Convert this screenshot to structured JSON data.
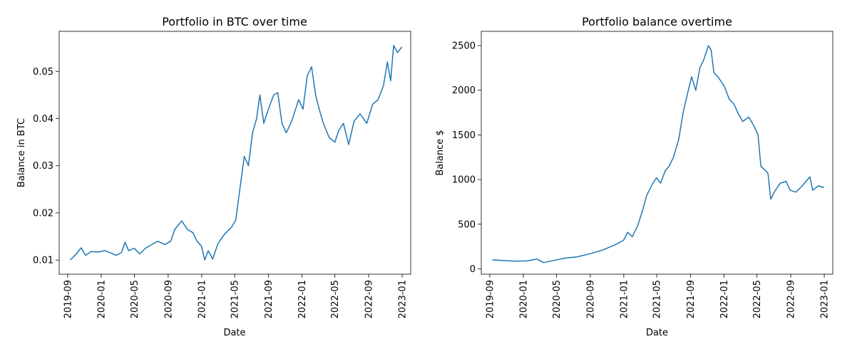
{
  "chart_data": [
    {
      "type": "line",
      "title": "Portfolio in BTC over time",
      "xlabel": "Date",
      "ylabel": "Balance in BTC",
      "xlim": [
        "2019-08-01",
        "2023-02-01"
      ],
      "ylim": [
        0.007,
        0.0585
      ],
      "x_ticks": [
        "2019-09",
        "2020-01",
        "2020-05",
        "2020-09",
        "2021-01",
        "2021-05",
        "2021-09",
        "2022-01",
        "2022-05",
        "2022-09",
        "2023-01"
      ],
      "y_ticks": [
        "0.01",
        "0.02",
        "0.03",
        "0.04",
        "0.05"
      ],
      "grid": false,
      "series": [
        {
          "color": "#1f77b4",
          "points": [
            [
              "2019-09-10",
              0.01
            ],
            [
              "2019-10-01",
              0.0112
            ],
            [
              "2019-10-20",
              0.0126
            ],
            [
              "2019-11-05",
              0.011
            ],
            [
              "2019-11-25",
              0.0118
            ],
            [
              "2019-12-20",
              0.0117
            ],
            [
              "2020-01-15",
              0.012
            ],
            [
              "2020-02-05",
              0.0115
            ],
            [
              "2020-02-25",
              0.011
            ],
            [
              "2020-03-15",
              0.0116
            ],
            [
              "2020-03-28",
              0.0138
            ],
            [
              "2020-04-10",
              0.012
            ],
            [
              "2020-05-01",
              0.0125
            ],
            [
              "2020-05-20",
              0.0113
            ],
            [
              "2020-06-10",
              0.0125
            ],
            [
              "2020-07-01",
              0.0132
            ],
            [
              "2020-07-25",
              0.014
            ],
            [
              "2020-08-20",
              0.0133
            ],
            [
              "2020-09-10",
              0.014
            ],
            [
              "2020-09-25",
              0.0165
            ],
            [
              "2020-10-20",
              0.0183
            ],
            [
              "2020-11-10",
              0.0165
            ],
            [
              "2020-11-30",
              0.0158
            ],
            [
              "2020-12-15",
              0.014
            ],
            [
              "2020-12-31",
              0.013
            ],
            [
              "2021-01-12",
              0.01
            ],
            [
              "2021-01-25",
              0.012
            ],
            [
              "2021-02-10",
              0.0102
            ],
            [
              "2021-03-01",
              0.0135
            ],
            [
              "2021-03-25",
              0.0155
            ],
            [
              "2021-04-20",
              0.017
            ],
            [
              "2021-05-05",
              0.0185
            ],
            [
              "2021-05-20",
              0.025
            ],
            [
              "2021-06-05",
              0.032
            ],
            [
              "2021-06-20",
              0.03
            ],
            [
              "2021-07-05",
              0.037
            ],
            [
              "2021-07-20",
              0.04
            ],
            [
              "2021-08-01",
              0.045
            ],
            [
              "2021-08-15",
              0.039
            ],
            [
              "2021-09-01",
              0.042
            ],
            [
              "2021-09-20",
              0.045
            ],
            [
              "2021-10-05",
              0.0455
            ],
            [
              "2021-10-20",
              0.039
            ],
            [
              "2021-11-05",
              0.037
            ],
            [
              "2021-11-25",
              0.0395
            ],
            [
              "2021-12-20",
              0.044
            ],
            [
              "2022-01-05",
              0.042
            ],
            [
              "2022-01-20",
              0.049
            ],
            [
              "2022-02-05",
              0.051
            ],
            [
              "2022-02-20",
              0.045
            ],
            [
              "2022-03-05",
              0.042
            ],
            [
              "2022-03-20",
              0.039
            ],
            [
              "2022-04-10",
              0.036
            ],
            [
              "2022-05-01",
              0.035
            ],
            [
              "2022-05-15",
              0.0375
            ],
            [
              "2022-06-01",
              0.039
            ],
            [
              "2022-06-20",
              0.0345
            ],
            [
              "2022-07-10",
              0.0395
            ],
            [
              "2022-08-01",
              0.041
            ],
            [
              "2022-08-25",
              0.039
            ],
            [
              "2022-09-15",
              0.043
            ],
            [
              "2022-10-05",
              0.044
            ],
            [
              "2022-10-25",
              0.047
            ],
            [
              "2022-11-08",
              0.052
            ],
            [
              "2022-11-20",
              0.048
            ],
            [
              "2022-12-01",
              0.0555
            ],
            [
              "2022-12-15",
              0.054
            ],
            [
              "2022-12-31",
              0.0552
            ]
          ]
        }
      ]
    },
    {
      "type": "line",
      "title": "Portfolio balance overtime",
      "xlabel": "Date",
      "ylabel": "Balance $",
      "xlim": [
        "2019-08-01",
        "2023-02-01"
      ],
      "ylim": [
        -60,
        2660
      ],
      "x_ticks": [
        "2019-09",
        "2020-01",
        "2020-05",
        "2020-09",
        "2021-01",
        "2021-05",
        "2021-09",
        "2022-01",
        "2022-05",
        "2022-09",
        "2023-01"
      ],
      "y_ticks": [
        "0",
        "500",
        "1000",
        "1500",
        "2000",
        "2500"
      ],
      "grid": false,
      "series": [
        {
          "color": "#1f77b4",
          "points": [
            [
              "2019-09-10",
              100
            ],
            [
              "2019-10-15",
              95
            ],
            [
              "2019-12-01",
              85
            ],
            [
              "2020-01-15",
              90
            ],
            [
              "2020-02-20",
              110
            ],
            [
              "2020-03-15",
              70
            ],
            [
              "2020-04-15",
              90
            ],
            [
              "2020-06-01",
              120
            ],
            [
              "2020-07-15",
              135
            ],
            [
              "2020-09-01",
              170
            ],
            [
              "2020-10-15",
              210
            ],
            [
              "2020-12-01",
              270
            ],
            [
              "2020-12-31",
              320
            ],
            [
              "2021-01-15",
              410
            ],
            [
              "2021-02-01",
              360
            ],
            [
              "2021-02-20",
              480
            ],
            [
              "2021-03-10",
              650
            ],
            [
              "2021-03-25",
              820
            ],
            [
              "2021-04-15",
              950
            ],
            [
              "2021-04-30",
              1020
            ],
            [
              "2021-05-15",
              960
            ],
            [
              "2021-06-01",
              1100
            ],
            [
              "2021-06-15",
              1150
            ],
            [
              "2021-07-01",
              1250
            ],
            [
              "2021-07-20",
              1450
            ],
            [
              "2021-08-05",
              1750
            ],
            [
              "2021-08-20",
              1950
            ],
            [
              "2021-09-05",
              2150
            ],
            [
              "2021-09-20",
              2000
            ],
            [
              "2021-10-05",
              2250
            ],
            [
              "2021-10-20",
              2350
            ],
            [
              "2021-11-05",
              2500
            ],
            [
              "2021-11-15",
              2450
            ],
            [
              "2021-11-25",
              2200
            ],
            [
              "2021-12-10",
              2150
            ],
            [
              "2022-01-01",
              2050
            ],
            [
              "2022-01-20",
              1900
            ],
            [
              "2022-02-05",
              1850
            ],
            [
              "2022-02-20",
              1750
            ],
            [
              "2022-03-10",
              1650
            ],
            [
              "2022-04-01",
              1700
            ],
            [
              "2022-04-20",
              1600
            ],
            [
              "2022-05-05",
              1500
            ],
            [
              "2022-05-15",
              1150
            ],
            [
              "2022-06-01",
              1100
            ],
            [
              "2022-06-10",
              1070
            ],
            [
              "2022-06-20",
              780
            ],
            [
              "2022-07-05",
              870
            ],
            [
              "2022-07-25",
              960
            ],
            [
              "2022-08-15",
              980
            ],
            [
              "2022-08-30",
              880
            ],
            [
              "2022-09-20",
              860
            ],
            [
              "2022-10-10",
              920
            ],
            [
              "2022-11-01",
              1000
            ],
            [
              "2022-11-10",
              1030
            ],
            [
              "2022-11-20",
              880
            ],
            [
              "2022-12-10",
              930
            ],
            [
              "2022-12-31",
              910
            ]
          ]
        }
      ]
    }
  ]
}
